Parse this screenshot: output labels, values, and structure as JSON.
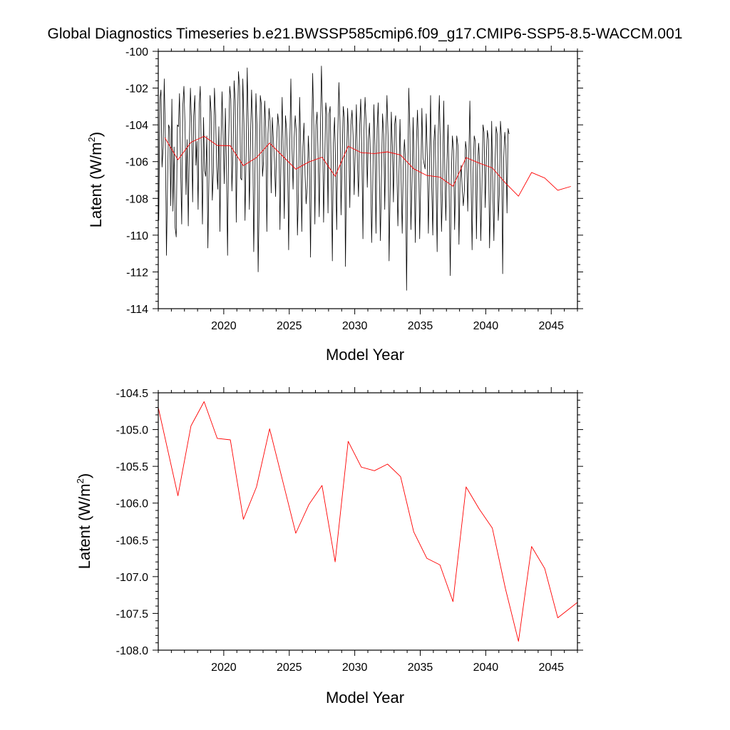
{
  "figure_title": "Global Diagnostics Timeseries b.e21.BWSSP585cmip6.f09_g17.CMIP6-SSP5-8.5-WACCM.001",
  "colors": {
    "monthly": "#000000",
    "annual": "#ff0000",
    "frame": "#000000"
  },
  "chart_data": [
    {
      "type": "line",
      "xlabel": "Model Year",
      "ylabel": "Latent (W/m²)",
      "ylabel_base": "Latent (W/m",
      "ylabel_sup": "2",
      "ylabel_end": ")",
      "xlim": [
        2015,
        2047
      ],
      "ylim": [
        -114,
        -100
      ],
      "xticks": [
        2020,
        2025,
        2030,
        2035,
        2040,
        2045
      ],
      "xtick_labels": [
        "2020",
        "2025",
        "2030",
        "2035",
        "2040",
        "2045"
      ],
      "yticks": [
        -114,
        -112,
        -110,
        -108,
        -106,
        -104,
        -102,
        -100
      ],
      "ytick_labels": [
        "-114",
        "-112",
        "-110",
        "-108",
        "-106",
        "-104",
        "-102",
        "-100"
      ],
      "grid": false,
      "series": [
        {
          "key": "monthly",
          "x_start": 2015.04,
          "x_step": 0.08333,
          "values": [
            -109.2,
            -102.6,
            -102.1,
            -106.3,
            -105.2,
            -101.5,
            -104.5,
            -111.1,
            -107.2,
            -104.0,
            -104.2,
            -108.4,
            -102.6,
            -108.7,
            -105.2,
            -109.6,
            -110.1,
            -104.0,
            -104.1,
            -102.3,
            -106.4,
            -109.4,
            -103.0,
            -101.9,
            -104.0,
            -107.8,
            -104.8,
            -109.5,
            -105.0,
            -102.0,
            -103.9,
            -108.2,
            -103.5,
            -102.4,
            -106.2,
            -104.9,
            -108.6,
            -103.0,
            -101.9,
            -105.7,
            -109.4,
            -103.6,
            -106.5,
            -106.8,
            -104.6,
            -110.7,
            -106.5,
            -102.4,
            -103.3,
            -108.1,
            -106.6,
            -102.0,
            -103.5,
            -106.3,
            -107.5,
            -104.1,
            -109.8,
            -104.8,
            -102.2,
            -104.7,
            -107.2,
            -103.1,
            -106.4,
            -111.1,
            -104.9,
            -101.9,
            -102.6,
            -107.6,
            -105.4,
            -101.6,
            -102.7,
            -109.3,
            -104.5,
            -101.1,
            -101.9,
            -106.9,
            -107.0,
            -101.5,
            -103.9,
            -109.2,
            -105.6,
            -100.9,
            -104.2,
            -108.6,
            -104.8,
            -102.1,
            -104.0,
            -110.9,
            -107.0,
            -102.3,
            -104.1,
            -112.0,
            -108.1,
            -102.4,
            -102.9,
            -106.8,
            -106.0,
            -102.7,
            -104.2,
            -109.8,
            -104.5,
            -103.1,
            -103.8,
            -107.7,
            -103.6,
            -104.8,
            -106.0,
            -107.9,
            -104.9,
            -103.4,
            -104.1,
            -109.7,
            -105.7,
            -102.5,
            -105.7,
            -109.1,
            -103.5,
            -104.2,
            -106.0,
            -110.8,
            -105.1,
            -101.5,
            -105.1,
            -107.5,
            -104.7,
            -103.5,
            -104.4,
            -110.0,
            -107.7,
            -102.5,
            -105.2,
            -109.8,
            -105.2,
            -103.9,
            -106.7,
            -108.3,
            -107.3,
            -104.6,
            -106.1,
            -111.2,
            -105.0,
            -101.2,
            -104.1,
            -109.4,
            -104.0,
            -103.3,
            -105.9,
            -109.0,
            -104.5,
            -100.8,
            -103.6,
            -109.3,
            -106.0,
            -102.8,
            -103.5,
            -108.8,
            -103.4,
            -103.0,
            -106.7,
            -111.4,
            -105.0,
            -103.6,
            -106.4,
            -109.7,
            -104.5,
            -101.7,
            -103.8,
            -108.9,
            -105.6,
            -103.0,
            -103.6,
            -111.7,
            -106.1,
            -103.1,
            -105.0,
            -108.5,
            -104.0,
            -103.2,
            -104.6,
            -107.8,
            -105.4,
            -102.9,
            -106.2,
            -107.9,
            -104.1,
            -102.6,
            -105.2,
            -110.2,
            -104.3,
            -102.5,
            -104.0,
            -107.4,
            -104.8,
            -103.9,
            -106.1,
            -110.4,
            -107.5,
            -102.9,
            -105.1,
            -109.9,
            -104.2,
            -102.8,
            -106.6,
            -110.3,
            -106.9,
            -103.4,
            -104.5,
            -108.6,
            -104.7,
            -102.4,
            -104.6,
            -111.4,
            -107.5,
            -103.3,
            -105.2,
            -108.2,
            -104.0,
            -103.5,
            -105.9,
            -109.5,
            -106.8,
            -103.7,
            -107.1,
            -109.9,
            -106.2,
            -104.8,
            -105.9,
            -113.0,
            -107.5,
            -102.0,
            -104.2,
            -109.7,
            -107.0,
            -103.6,
            -106.4,
            -110.4,
            -104.9,
            -103.2,
            -105.4,
            -110.2,
            -107.0,
            -103.1,
            -105.8,
            -106.1,
            -106.4,
            -103.4,
            -105.8,
            -109.9,
            -106.1,
            -102.4,
            -107.2,
            -110.0,
            -104.9,
            -104.0,
            -107.2,
            -110.9,
            -104.6,
            -102.4,
            -105.4,
            -109.8,
            -107.5,
            -102.7,
            -106.4,
            -109.2,
            -106.0,
            -104.0,
            -107.5,
            -112.2,
            -106.8,
            -104.6,
            -105.4,
            -109.7,
            -106.9,
            -104.6,
            -105.1,
            -110.5,
            -107.1,
            -106.2,
            -107.5,
            -108.4,
            -107.5,
            -104.9,
            -105.4,
            -108.7,
            -105.9,
            -102.7,
            -106.7,
            -110.8,
            -106.4,
            -104.6,
            -104.9,
            -110.2,
            -106.3,
            -105.0,
            -106.1,
            -110.3,
            -107.4,
            -104.0,
            -104.4,
            -108.5,
            -105.9,
            -104.3,
            -104.8,
            -110.7,
            -108.0,
            -103.8,
            -107.6,
            -110.3,
            -106.3,
            -104.1,
            -104.5,
            -109.2,
            -107.7,
            -103.8,
            -104.7,
            -112.1,
            -105.8,
            -104.4,
            -105.3,
            -108.8,
            -104.2,
            -104.5
          ]
        },
        {
          "key": "annual",
          "x": [
            2015.5,
            2016.5,
            2017.5,
            2018.5,
            2019.5,
            2020.5,
            2021.5,
            2022.5,
            2023.5,
            2024.5,
            2025.5,
            2026.5,
            2027.5,
            2028.5,
            2029.5,
            2030.5,
            2031.5,
            2032.5,
            2033.5,
            2034.5,
            2035.5,
            2036.5,
            2037.5,
            2038.5,
            2039.5,
            2040.5,
            2041.5,
            2042.5,
            2043.5,
            2044.5,
            2045.5,
            2046.5
          ],
          "values": [
            -104.7,
            -105.9,
            -104.95,
            -104.62,
            -105.12,
            -105.14,
            -106.22,
            -105.78,
            -104.99,
            -105.7,
            -106.41,
            -106.02,
            -105.76,
            -106.8,
            -105.16,
            -105.51,
            -105.56,
            -105.47,
            -105.64,
            -106.39,
            -106.75,
            -106.84,
            -107.34,
            -105.78,
            -106.08,
            -106.34,
            -107.16,
            -107.88,
            -106.59,
            -106.89,
            -107.56,
            -107.35
          ]
        }
      ]
    },
    {
      "type": "line",
      "xlabel": "Model Year",
      "ylabel": "Latent (W/m²)",
      "ylabel_base": "Latent (W/m",
      "ylabel_sup": "2",
      "ylabel_end": ")",
      "xlim": [
        2015,
        2047
      ],
      "ylim": [
        -108.0,
        -104.5
      ],
      "xticks": [
        2020,
        2025,
        2030,
        2035,
        2040,
        2045
      ],
      "xtick_labels": [
        "2020",
        "2025",
        "2030",
        "2035",
        "2040",
        "2045"
      ],
      "yticks": [
        -108.0,
        -107.5,
        -107.0,
        -106.5,
        -106.0,
        -105.5,
        -105.0,
        -104.5
      ],
      "ytick_labels": [
        "-108.0",
        "-107.5",
        "-107.0",
        "-106.5",
        "-106.0",
        "-105.5",
        "-105.0",
        "-104.5"
      ],
      "grid": false,
      "series": [
        {
          "key": "annual",
          "x": [
            2015,
            2016.5,
            2017.5,
            2018.5,
            2019.5,
            2020.5,
            2021.5,
            2022.5,
            2023.5,
            2024.5,
            2025.5,
            2026.5,
            2027.5,
            2028.5,
            2029.5,
            2030.5,
            2031.5,
            2032.5,
            2033.5,
            2034.5,
            2035.5,
            2036.5,
            2037.5,
            2038.5,
            2039.5,
            2040.5,
            2041.5,
            2042.5,
            2043.5,
            2044.5,
            2045.5,
            2047
          ],
          "values": [
            -104.7,
            -105.9,
            -104.95,
            -104.62,
            -105.12,
            -105.14,
            -106.22,
            -105.78,
            -104.99,
            -105.7,
            -106.41,
            -106.02,
            -105.76,
            -106.8,
            -105.16,
            -105.51,
            -105.56,
            -105.47,
            -105.64,
            -106.39,
            -106.75,
            -106.84,
            -107.34,
            -105.78,
            -106.08,
            -106.34,
            -107.16,
            -107.88,
            -106.59,
            -106.89,
            -107.56,
            -107.35
          ]
        }
      ]
    }
  ]
}
